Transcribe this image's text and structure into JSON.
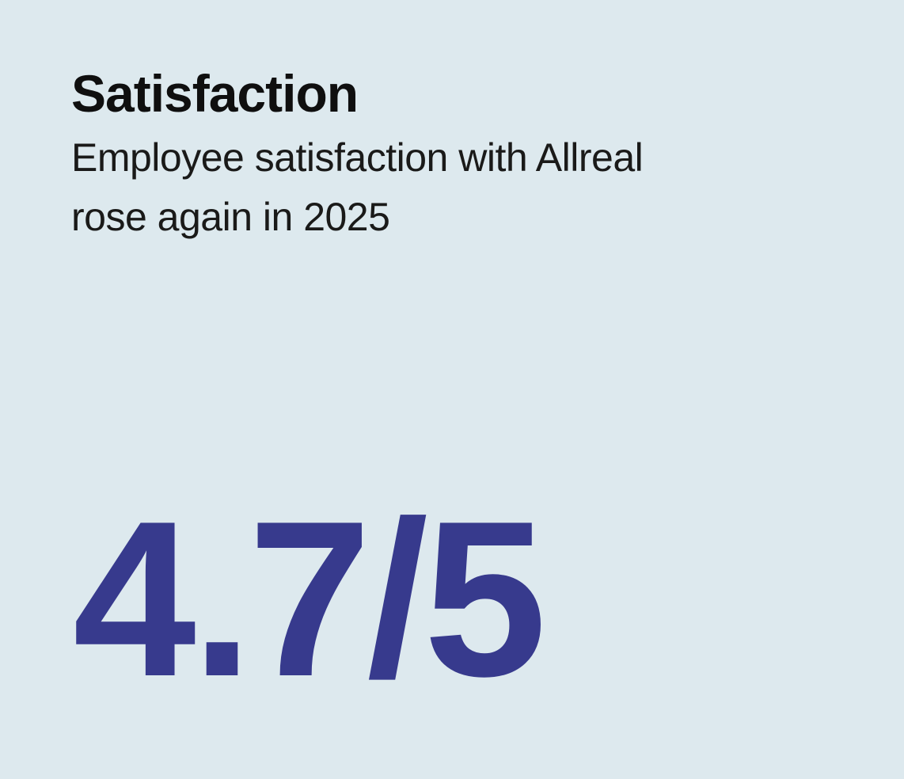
{
  "card": {
    "title": "Satisfaction",
    "subtitle_lines": [
      "Employee satisfaction with Allreal",
      "rose again in 2025"
    ],
    "stat_display": "4.7/5",
    "rating": {
      "value": 4.7,
      "max": 5,
      "year": "2025",
      "company": "Allreal"
    }
  },
  "colors": {
    "background": "#dde9ee",
    "title": "#0f0f0f",
    "subtitle": "#1a1a19",
    "stat": "#373a8d"
  }
}
